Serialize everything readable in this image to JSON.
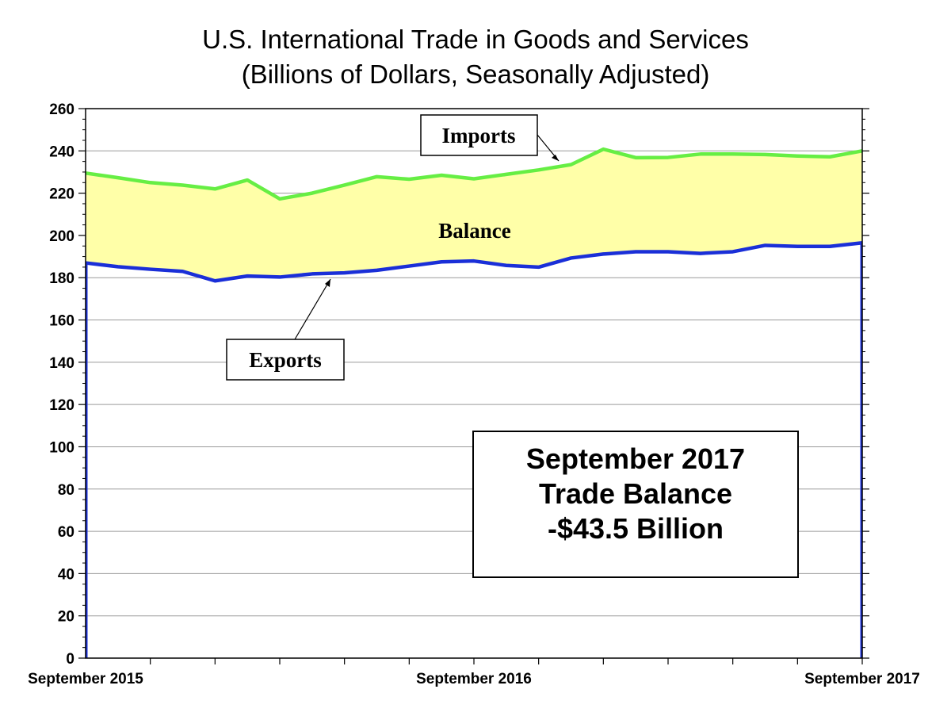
{
  "chart_data": {
    "type": "area",
    "title": "U.S. International Trade in Goods and Services",
    "subtitle": "(Billions of Dollars, Seasonally Adjusted)",
    "ylim": [
      0,
      260
    ],
    "yticks": [
      0,
      20,
      40,
      60,
      80,
      100,
      120,
      140,
      160,
      180,
      200,
      220,
      240,
      260
    ],
    "x_labels": [
      "September 2015",
      "September 2016",
      "September 2017"
    ],
    "x_label_index": [
      0,
      12,
      24
    ],
    "grid": true,
    "series": [
      {
        "name": "Imports",
        "color": "#66ee44",
        "values": [
          229.5,
          227.3,
          225.0,
          223.8,
          222.0,
          226.2,
          217.3,
          220.0,
          223.8,
          227.8,
          226.6,
          228.5,
          226.8,
          228.9,
          231.0,
          233.5,
          240.8,
          236.8,
          236.9,
          238.5,
          238.5,
          238.3,
          237.6,
          237.2,
          240.0
        ]
      },
      {
        "name": "Exports",
        "color": "#1a2fd8",
        "values": [
          187.0,
          185.2,
          184.0,
          183.0,
          178.5,
          180.8,
          180.3,
          181.8,
          182.3,
          183.5,
          185.5,
          187.5,
          187.9,
          185.8,
          185.0,
          189.3,
          191.2,
          192.3,
          192.3,
          191.5,
          192.3,
          195.3,
          194.8,
          194.8,
          196.5
        ]
      }
    ],
    "fill_between_label": "Balance",
    "fill_color": "#ffffa8",
    "annotations": {
      "imports": "Imports",
      "exports": "Exports",
      "balance": "Balance"
    },
    "summary_box": [
      "September 2017",
      "Trade Balance",
      "-$43.5 Billion"
    ]
  }
}
